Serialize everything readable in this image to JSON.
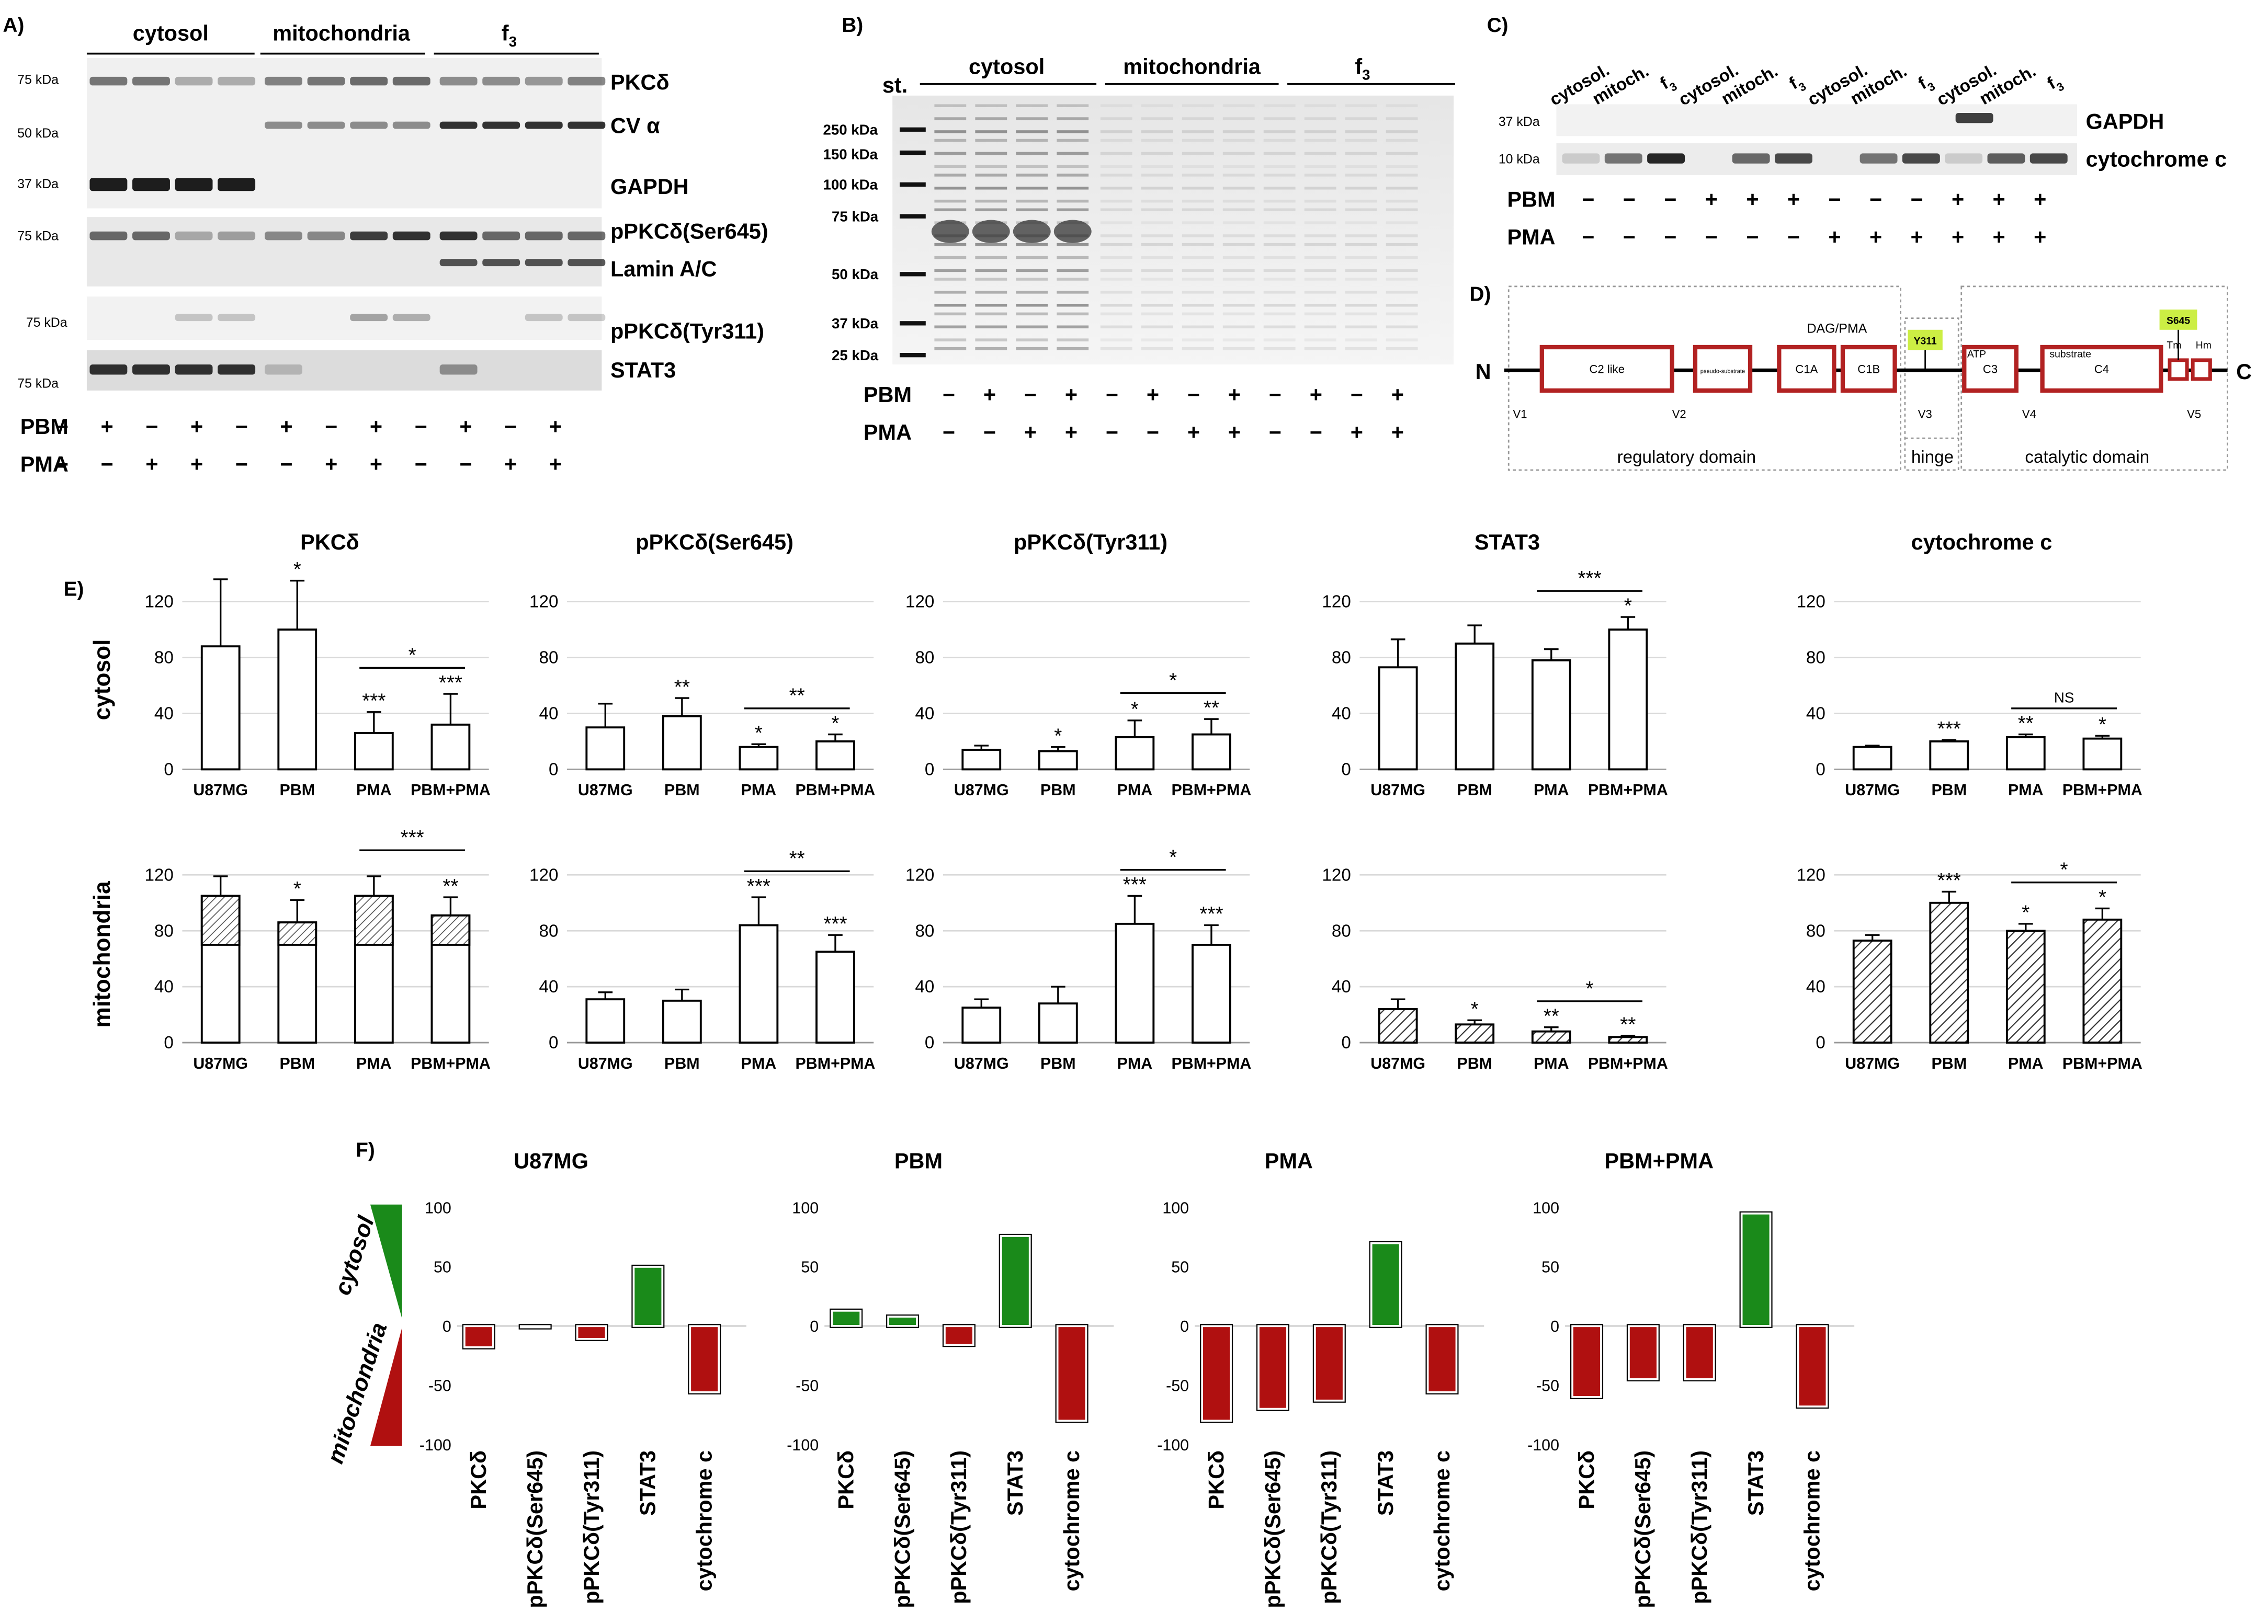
{
  "panel_letters": {
    "A": "A)",
    "B": "B)",
    "C": "C)",
    "D": "D)",
    "E": "E)",
    "F": "F)"
  },
  "blot_a": {
    "groups": [
      "cytosol",
      "mitochondria",
      "f3"
    ],
    "proteins": [
      "PKCδ",
      "CV α",
      "GAPDH",
      "pPKCδ(Ser645)",
      "Lamin A/C",
      "pPKCδ(Tyr311)",
      "STAT3"
    ],
    "mw": [
      "75 kDa",
      "50 kDa",
      "37 kDa",
      "75 kDa",
      "75 kDa",
      "75 kDa"
    ],
    "pbm_label": "PBM",
    "pma_label": "PMA",
    "pbm": [
      "−",
      "+",
      "−",
      "+",
      "−",
      "+",
      "−",
      "+",
      "−",
      "+",
      "−",
      "+"
    ],
    "pma": [
      "−",
      "−",
      "+",
      "+",
      "−",
      "−",
      "+",
      "+",
      "−",
      "−",
      "+",
      "+"
    ]
  },
  "gel_b": {
    "std_label": "st.",
    "groups": [
      "cytosol",
      "mitochondria",
      "f3"
    ],
    "mw": [
      "250 kDa",
      "150 kDa",
      "100 kDa",
      "75 kDa",
      "50 kDa",
      "37 kDa",
      "25 kDa"
    ],
    "pbm_label": "PBM",
    "pma_label": "PMA",
    "pbm": [
      "−",
      "+",
      "−",
      "+",
      "−",
      "+",
      "−",
      "+",
      "−",
      "+",
      "−",
      "+"
    ],
    "pma": [
      "−",
      "−",
      "+",
      "+",
      "−",
      "−",
      "+",
      "+",
      "−",
      "−",
      "+",
      "+"
    ]
  },
  "blot_c": {
    "lanes": [
      "cytosol.",
      "mitoch.",
      "f3",
      "cytosol.",
      "mitoch.",
      "f3",
      "cytosol.",
      "mitoch.",
      "f3",
      "cytosol.",
      "mitoch.",
      "f3"
    ],
    "mw": [
      "37 kDa",
      "10 kDa"
    ],
    "proteins": [
      "GAPDH",
      "cytochrome c"
    ],
    "pbm_label": "PBM",
    "pma_label": "PMA",
    "pbm": [
      "−",
      "−",
      "−",
      "+",
      "+",
      "+",
      "−",
      "−",
      "−",
      "+",
      "+",
      "+"
    ],
    "pma": [
      "−",
      "−",
      "−",
      "−",
      "−",
      "−",
      "+",
      "+",
      "+",
      "+",
      "+",
      "+"
    ]
  },
  "diagram_d": {
    "n_term": "N",
    "c_term": "C",
    "domains": [
      "C2 like",
      "pseudo-substrate",
      "C1A",
      "C1B",
      "C3",
      "C4"
    ],
    "above_labels": {
      "dag": "DAG/PMA",
      "atp": "ATP",
      "substrate": "substrate",
      "tm": "Tm",
      "hm": "Hm"
    },
    "sites": [
      "Y311",
      "S645"
    ],
    "variable": [
      "V1",
      "V2",
      "V3",
      "V4",
      "V5"
    ],
    "regions": [
      "regulatory domain",
      "hinge",
      "catalytic domain"
    ],
    "colors": {
      "domain": "#b22222",
      "site": "#ccee44"
    }
  },
  "panel_e": {
    "row_labels": [
      "cytosol",
      "mitochondria"
    ],
    "titles": [
      "PKCδ",
      "pPKCδ(Ser645)",
      "pPKCδ(Tyr311)",
      "STAT3",
      "cytochrome c"
    ]
  },
  "panel_f": {
    "side_top": "cytosol",
    "side_bottom": "mitochondria",
    "colors": {
      "positive": "#1a8a1a",
      "negative": "#b01010"
    }
  },
  "chart_data": [
    {
      "type": "bar",
      "title": "PKCδ",
      "categories": [
        "U87MG",
        "PBM",
        "PMA",
        "PBM+PMA"
      ],
      "values": [
        88,
        100,
        26,
        32
      ],
      "errors": [
        48,
        35,
        15,
        22
      ],
      "hatched_from": null,
      "hatch_lower": [
        null,
        null,
        null,
        null
      ],
      "sig": [
        "",
        "*",
        "***",
        "***"
      ],
      "bracket": {
        "between": [
          2,
          3
        ],
        "label": "*"
      },
      "ylim": [
        0,
        120
      ],
      "yticks": [
        "0",
        "40",
        "80",
        "120"
      ],
      "row": "cytosol"
    },
    {
      "type": "bar",
      "title": "pPKCδ(Ser645)",
      "categories": [
        "U87MG",
        "PBM",
        "PMA",
        "PBM+PMA"
      ],
      "values": [
        30,
        38,
        16,
        20
      ],
      "errors": [
        17,
        13,
        2,
        5
      ],
      "hatch_lower": [
        null,
        null,
        null,
        null
      ],
      "sig": [
        "",
        "**",
        "*",
        "*"
      ],
      "bracket": {
        "between": [
          2,
          3
        ],
        "label": "**"
      },
      "ylim": [
        0,
        120
      ],
      "yticks": [
        "0",
        "40",
        "80",
        "120"
      ],
      "row": "cytosol"
    },
    {
      "type": "bar",
      "title": "pPKCδ(Tyr311)",
      "categories": [
        "U87MG",
        "PBM",
        "PMA",
        "PBM+PMA"
      ],
      "values": [
        14,
        13,
        23,
        25
      ],
      "errors": [
        3,
        3,
        12,
        11
      ],
      "hatch_lower": [
        null,
        null,
        null,
        null
      ],
      "sig": [
        "",
        "*",
        "*",
        "**"
      ],
      "bracket": {
        "between": [
          2,
          3
        ],
        "label": "*"
      },
      "ylim": [
        0,
        120
      ],
      "yticks": [
        "0",
        "40",
        "80",
        "120"
      ],
      "row": "cytosol"
    },
    {
      "type": "bar",
      "title": "STAT3",
      "categories": [
        "U87MG",
        "PBM",
        "PMA",
        "PBM+PMA"
      ],
      "values": [
        73,
        90,
        78,
        100
      ],
      "errors": [
        20,
        13,
        8,
        9
      ],
      "hatch_lower": [
        null,
        null,
        null,
        null
      ],
      "sig": [
        "",
        "",
        "",
        "*"
      ],
      "bracket": {
        "between": [
          2,
          3
        ],
        "label": "***"
      },
      "ylim": [
        0,
        120
      ],
      "yticks": [
        "0",
        "40",
        "80",
        "120"
      ],
      "row": "cytosol"
    },
    {
      "type": "bar",
      "title": "cytochrome c",
      "categories": [
        "U87MG",
        "PBM",
        "PMA",
        "PBM+PMA"
      ],
      "values": [
        16,
        20,
        23,
        22
      ],
      "errors": [
        1,
        1,
        2,
        2
      ],
      "hatch_lower": [
        null,
        null,
        null,
        null
      ],
      "sig": [
        "",
        "***",
        "**",
        "*"
      ],
      "bracket": {
        "between": [
          2,
          3
        ],
        "label": "NS"
      },
      "ylim": [
        0,
        120
      ],
      "yticks": [
        "0",
        "40",
        "80",
        "120"
      ],
      "row": "cytosol"
    },
    {
      "type": "bar",
      "title": "",
      "categories": [
        "U87MG",
        "PBM",
        "PMA",
        "PBM+PMA"
      ],
      "values": [
        105,
        86,
        105,
        91
      ],
      "errors": [
        14,
        16,
        14,
        13
      ],
      "hatch_lower": [
        70,
        70,
        70,
        70
      ],
      "hatch_style": "top",
      "sig": [
        "",
        "*",
        "",
        "**"
      ],
      "bracket": {
        "between": [
          2,
          3
        ],
        "label": "***"
      },
      "ylim": [
        0,
        120
      ],
      "yticks": [
        "0",
        "40",
        "80",
        "120"
      ],
      "row": "mitochondria"
    },
    {
      "type": "bar",
      "title": "",
      "categories": [
        "U87MG",
        "PBM",
        "PMA",
        "PBM+PMA"
      ],
      "values": [
        31,
        30,
        84,
        65
      ],
      "errors": [
        5,
        8,
        20,
        12
      ],
      "hatch_lower": [
        null,
        null,
        null,
        null
      ],
      "sig": [
        "",
        "",
        "***",
        "***"
      ],
      "bracket": {
        "between": [
          2,
          3
        ],
        "label": "**"
      },
      "ylim": [
        0,
        120
      ],
      "yticks": [
        "0",
        "40",
        "80",
        "120"
      ],
      "row": "mitochondria"
    },
    {
      "type": "bar",
      "title": "",
      "categories": [
        "U87MG",
        "PBM",
        "PMA",
        "PBM+PMA"
      ],
      "values": [
        25,
        28,
        85,
        70
      ],
      "errors": [
        6,
        12,
        20,
        14
      ],
      "hatch_lower": [
        null,
        null,
        null,
        null
      ],
      "sig": [
        "",
        "",
        "***",
        "***"
      ],
      "bracket": {
        "between": [
          2,
          3
        ],
        "label": "*"
      },
      "ylim": [
        0,
        120
      ],
      "yticks": [
        "0",
        "40",
        "80",
        "120"
      ],
      "row": "mitochondria"
    },
    {
      "type": "bar",
      "title": "",
      "categories": [
        "U87MG",
        "PBM",
        "PMA",
        "PBM+PMA"
      ],
      "values": [
        24,
        13,
        8,
        4
      ],
      "errors": [
        7,
        3,
        3,
        1
      ],
      "hatch_style": "full",
      "sig": [
        "",
        "*",
        "**",
        "**"
      ],
      "bracket": {
        "between": [
          2,
          3
        ],
        "label": "*"
      },
      "ylim": [
        0,
        120
      ],
      "yticks": [
        "0",
        "40",
        "80",
        "120"
      ],
      "row": "mitochondria"
    },
    {
      "type": "bar",
      "title": "",
      "categories": [
        "U87MG",
        "PBM",
        "PMA",
        "PBM+PMA"
      ],
      "values": [
        73,
        100,
        80,
        88
      ],
      "errors": [
        4,
        8,
        5,
        8
      ],
      "hatch_style": "full",
      "sig": [
        "",
        "***",
        "*",
        "*"
      ],
      "bracket": {
        "between": [
          2,
          3
        ],
        "label": "*"
      },
      "ylim": [
        0,
        120
      ],
      "yticks": [
        "0",
        "40",
        "80",
        "120"
      ],
      "row": "mitochondria"
    },
    {
      "type": "bar",
      "title": "U87MG",
      "categories": [
        "PKCδ",
        "pPKCδ(Ser645)",
        "pPKCδ(Tyr311)",
        "STAT3",
        "cytochrome c"
      ],
      "values": [
        -18,
        -1,
        -11,
        50,
        -56
      ],
      "ylim": [
        -100,
        100
      ],
      "yticks": [
        "100",
        "50",
        "0",
        "-50",
        "-100"
      ]
    },
    {
      "type": "bar",
      "title": "PBM",
      "categories": [
        "PKCδ",
        "pPKCδ(Ser645)",
        "pPKCδ(Tyr311)",
        "STAT3",
        "cytochrome c"
      ],
      "values": [
        13,
        8,
        -16,
        76,
        -80
      ],
      "ylim": [
        -100,
        100
      ],
      "yticks": [
        "100",
        "50",
        "0",
        "-50",
        "-100"
      ]
    },
    {
      "type": "bar",
      "title": "PMA",
      "categories": [
        "PKCδ",
        "pPKCδ(Ser645)",
        "pPKCδ(Tyr311)",
        "STAT3",
        "cytochrome c"
      ],
      "values": [
        -80,
        -70,
        -63,
        70,
        -56
      ],
      "ylim": [
        -100,
        100
      ],
      "yticks": [
        "100",
        "50",
        "0",
        "-50",
        "-100"
      ]
    },
    {
      "type": "bar",
      "title": "PBM+PMA",
      "categories": [
        "PKCδ",
        "pPKCδ(Ser645)",
        "pPKCδ(Tyr311)",
        "STAT3",
        "cytochrome c"
      ],
      "values": [
        -60,
        -45,
        -45,
        95,
        -68
      ],
      "ylim": [
        -100,
        100
      ],
      "yticks": [
        "100",
        "50",
        "0",
        "-50",
        "-100"
      ]
    }
  ]
}
